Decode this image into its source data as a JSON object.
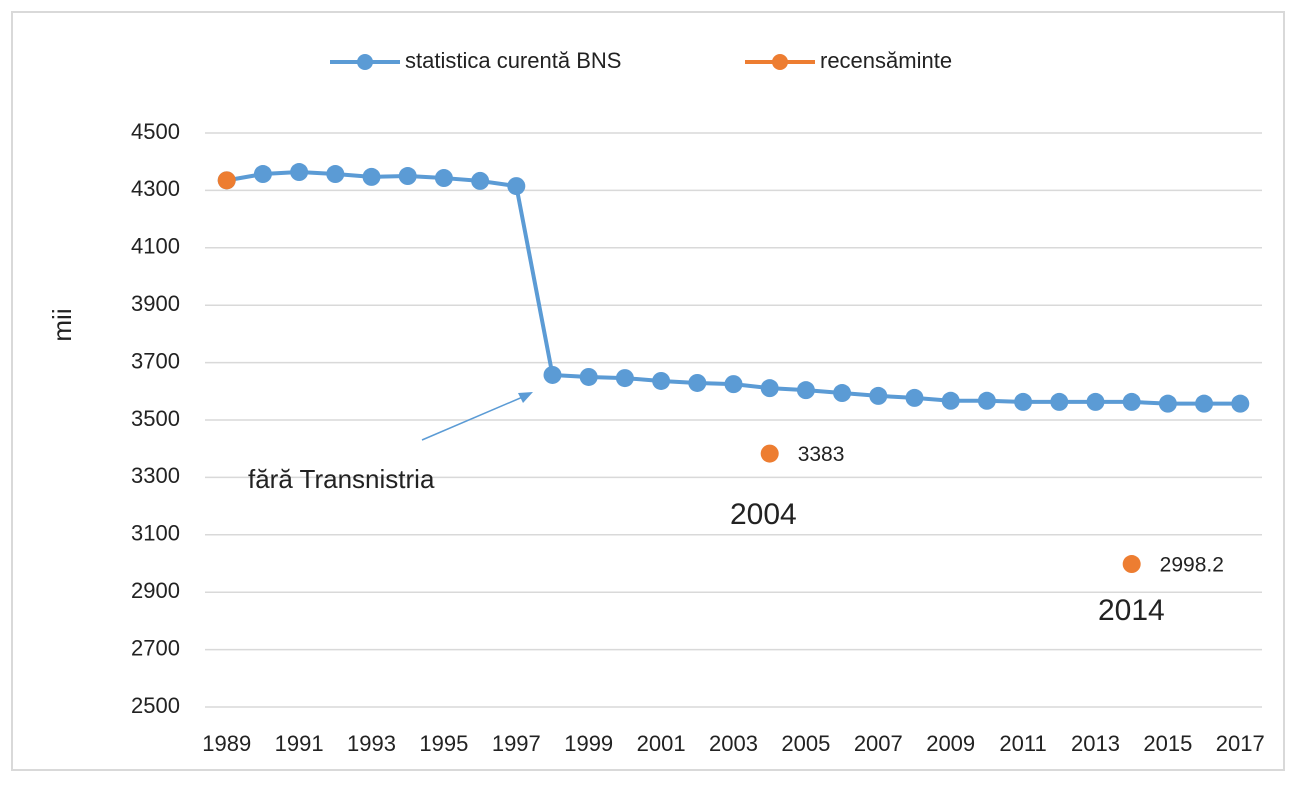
{
  "chart_data": {
    "type": "line",
    "y_label": "mii",
    "x": [
      1989,
      1990,
      1991,
      1992,
      1993,
      1994,
      1995,
      1996,
      1997,
      1998,
      1999,
      2000,
      2001,
      2002,
      2003,
      2004,
      2005,
      2006,
      2007,
      2008,
      2009,
      2010,
      2011,
      2012,
      2013,
      2014,
      2015,
      2016,
      2017
    ],
    "series": [
      {
        "name": "statistica curentă BNS",
        "color": "#5b9bd5",
        "lines": true,
        "values": [
          4335,
          4357,
          4364,
          4357,
          4347,
          4350,
          4343,
          4333,
          4315,
          3657,
          3650,
          3646,
          3636,
          3629,
          3625,
          3611,
          3604,
          3594,
          3584,
          3577,
          3567,
          3567,
          3563,
          3563,
          3563,
          3563,
          3557,
          3557,
          3557
        ]
      },
      {
        "name": "recensăminte",
        "color": "#ed7d31",
        "lines": false,
        "x": [
          1989,
          2004,
          2014
        ],
        "values": [
          4335,
          3383,
          2998.2
        ],
        "value_labels": [
          null,
          "3383",
          "2998.2"
        ]
      }
    ],
    "annotations": [
      {
        "text": "fără Transnistria"
      },
      {
        "text": "2004"
      },
      {
        "text": "2014"
      }
    ],
    "xlim": [
      1988.4,
      2017.6
    ],
    "xticks": [
      1989,
      1991,
      1993,
      1995,
      1997,
      1999,
      2001,
      2003,
      2005,
      2007,
      2009,
      2011,
      2013,
      2015,
      2017
    ],
    "ylim": [
      2500,
      4500
    ],
    "yticks": [
      2500,
      2700,
      2900,
      3100,
      3300,
      3500,
      3700,
      3900,
      4100,
      4300,
      4500
    ],
    "grid": true,
    "legend": "top"
  }
}
